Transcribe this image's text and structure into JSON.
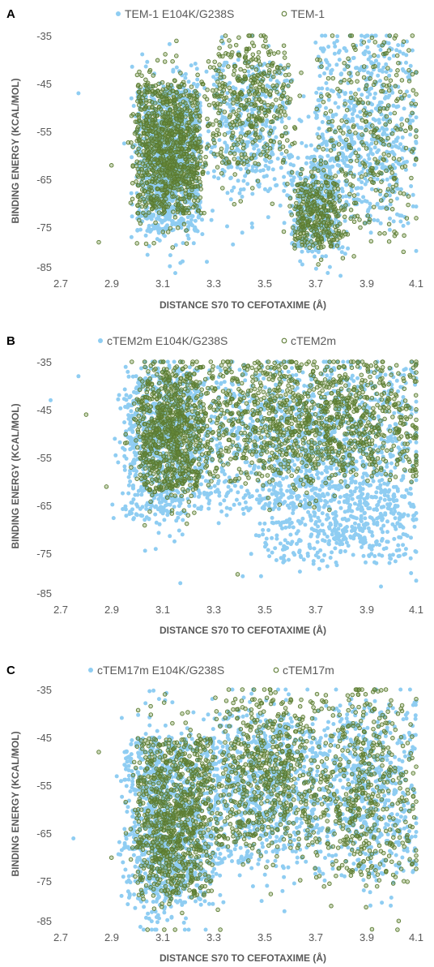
{
  "colors": {
    "mutant": "#8fcdf2",
    "wildtype_edge": "#5b7a32",
    "wildtype_fill": "#6b8e3a",
    "text": "#595959"
  },
  "chart_data": [
    {
      "panel": "A",
      "type": "scatter",
      "xlabel": "DISTANCE S70 TO CEFOTAXIME (Å)",
      "ylabel": "BINDING ENERGY (KCAL/MOL)",
      "xlim": [
        2.7,
        4.1
      ],
      "ylim": [
        -85,
        -35
      ],
      "xticks": [
        "2.7",
        "2.9",
        "3.1",
        "3.3",
        "3.5",
        "3.7",
        "3.9",
        "4.1"
      ],
      "yticks": [
        "-35",
        "-45",
        "-55",
        "-65",
        "-75",
        "-85"
      ],
      "legend_position": "top",
      "series": [
        {
          "name": "TEM-1 E104K/G238S",
          "marker": "filled-circle",
          "clusters": [
            {
              "x": [
                3.0,
                3.25
              ],
              "y": [
                -76,
                -45
              ],
              "weight": 0.45
            },
            {
              "x": [
                3.3,
                3.6
              ],
              "y": [
                -68,
                -40
              ],
              "weight": 0.15
            },
            {
              "x": [
                3.6,
                3.8
              ],
              "y": [
                -80,
                -60
              ],
              "weight": 0.15
            },
            {
              "x": [
                3.7,
                4.1
              ],
              "y": [
                -75,
                -36
              ],
              "weight": 0.25
            }
          ],
          "outliers": [
            [
              2.77,
              -47
            ],
            [
              3.13,
              -83
            ],
            [
              3.18,
              -82
            ],
            [
              3.7,
              -81
            ]
          ]
        },
        {
          "name": "TEM-1",
          "marker": "open-circle",
          "clusters": [
            {
              "x": [
                3.0,
                3.25
              ],
              "y": [
                -72,
                -45
              ],
              "weight": 0.5
            },
            {
              "x": [
                3.3,
                3.6
              ],
              "y": [
                -62,
                -37
              ],
              "weight": 0.2
            },
            {
              "x": [
                3.62,
                3.8
              ],
              "y": [
                -79,
                -65
              ],
              "weight": 0.15
            },
            {
              "x": [
                3.7,
                4.1
              ],
              "y": [
                -78,
                -36
              ],
              "weight": 0.15
            }
          ],
          "outliers": [
            [
              2.85,
              -78
            ],
            [
              2.9,
              -62
            ],
            [
              4.05,
              -80
            ]
          ]
        }
      ]
    },
    {
      "panel": "B",
      "type": "scatter",
      "xlabel": "DISTANCE S70 TO CEFOTAXIME (Å)",
      "ylabel": "BINDING ENERGY (KCAL/MOL)",
      "xlim": [
        2.7,
        4.1
      ],
      "ylim": [
        -85,
        -35
      ],
      "xticks": [
        "2.7",
        "2.9",
        "3.1",
        "3.3",
        "3.5",
        "3.7",
        "3.9",
        "4.1"
      ],
      "yticks": [
        "-35",
        "-45",
        "-55",
        "-65",
        "-75",
        "-85"
      ],
      "legend_position": "top",
      "series": [
        {
          "name": "cTEM2m E104K/G238S",
          "marker": "filled-circle",
          "clusters": [
            {
              "x": [
                2.95,
                3.25
              ],
              "y": [
                -68,
                -36
              ],
              "weight": 0.35
            },
            {
              "x": [
                3.25,
                4.1
              ],
              "y": [
                -66,
                -36
              ],
              "weight": 0.45
            },
            {
              "x": [
                3.5,
                4.1
              ],
              "y": [
                -77,
                -60
              ],
              "weight": 0.2
            }
          ],
          "outliers": [
            [
              2.66,
              -43
            ],
            [
              2.77,
              -38
            ],
            [
              3.8,
              -73
            ],
            [
              4.0,
              -76
            ],
            [
              4.08,
              -79
            ],
            [
              3.45,
              -75
            ]
          ]
        },
        {
          "name": "cTEM2m",
          "marker": "open-circle",
          "clusters": [
            {
              "x": [
                3.0,
                3.25
              ],
              "y": [
                -62,
                -36
              ],
              "weight": 0.4
            },
            {
              "x": [
                3.25,
                4.1
              ],
              "y": [
                -60,
                -35
              ],
              "weight": 0.6
            }
          ],
          "outliers": [
            [
              2.8,
              -46
            ],
            [
              2.88,
              -61
            ]
          ]
        }
      ]
    },
    {
      "panel": "C",
      "type": "scatter",
      "xlabel": "DISTANCE S70 TO CEFOTAXIME (Å)",
      "ylabel": "BINDING ENERGY (KCAL/MOL)",
      "xlim": [
        2.7,
        4.1
      ],
      "ylim": [
        -85,
        -35
      ],
      "xticks": [
        "2.7",
        "2.9",
        "3.1",
        "3.3",
        "3.5",
        "3.7",
        "3.9",
        "4.1"
      ],
      "yticks": [
        "-35",
        "-45",
        "-55",
        "-65",
        "-75",
        "-85"
      ],
      "legend_position": "top",
      "series": [
        {
          "name": "cTEM17m E104K/G238S",
          "marker": "filled-circle",
          "clusters": [
            {
              "x": [
                2.95,
                3.3
              ],
              "y": [
                -80,
                -45
              ],
              "weight": 0.45
            },
            {
              "x": [
                3.3,
                3.7
              ],
              "y": [
                -72,
                -40
              ],
              "weight": 0.3
            },
            {
              "x": [
                3.7,
                4.1
              ],
              "y": [
                -74,
                -38
              ],
              "weight": 0.25
            }
          ],
          "outliers": [
            [
              2.75,
              -66
            ],
            [
              3.12,
              -83
            ],
            [
              4.0,
              -80
            ]
          ]
        },
        {
          "name": "cTEM17m",
          "marker": "open-circle",
          "clusters": [
            {
              "x": [
                3.0,
                3.3
              ],
              "y": [
                -78,
                -45
              ],
              "weight": 0.45
            },
            {
              "x": [
                3.3,
                3.7
              ],
              "y": [
                -68,
                -37
              ],
              "weight": 0.3
            },
            {
              "x": [
                3.7,
                4.1
              ],
              "y": [
                -76,
                -36
              ],
              "weight": 0.25
            }
          ],
          "outliers": [
            [
              2.85,
              -48
            ],
            [
              2.9,
              -70
            ]
          ]
        }
      ]
    }
  ]
}
